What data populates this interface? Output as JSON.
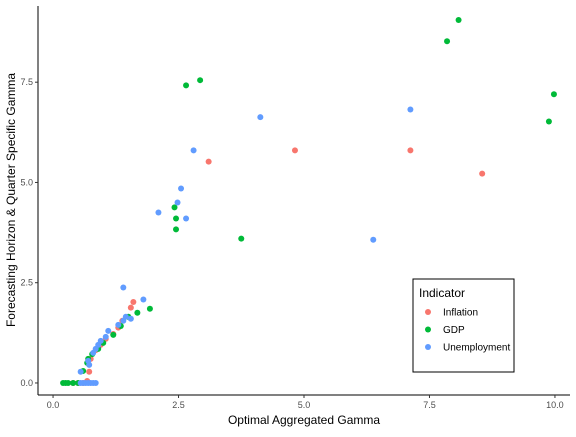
{
  "chart_data": {
    "type": "scatter",
    "xlabel": "Optimal Aggregated Gamma",
    "ylabel": "Forecasting Horizon & Quarter Specific Gamma",
    "xlim": [
      -0.3,
      10.3
    ],
    "ylim": [
      -0.3,
      9.4
    ],
    "x_ticks": [
      0,
      2.5,
      5,
      7.5,
      10
    ],
    "x_tick_labels": [
      "0.0",
      "2.5",
      "5.0",
      "7.5",
      "10.0"
    ],
    "y_ticks": [
      0,
      2.5,
      5,
      7.5
    ],
    "y_tick_labels": [
      "0.0",
      "2.5",
      "5.0",
      "7.5"
    ],
    "grid": false,
    "legend": {
      "title": "Indicator",
      "placement": "bottom-right",
      "entries": [
        "Inflation",
        "GDP",
        "Unemployment"
      ]
    },
    "series": [
      {
        "name": "Inflation",
        "color": "#F8766D",
        "points": [
          [
            3.1,
            5.52
          ],
          [
            4.82,
            5.8
          ],
          [
            7.12,
            5.8
          ],
          [
            8.55,
            5.22
          ],
          [
            1.6,
            2.02
          ],
          [
            1.55,
            1.88
          ],
          [
            1.38,
            1.55
          ],
          [
            1.3,
            1.38
          ],
          [
            1.2,
            1.22
          ],
          [
            1.05,
            1.1
          ],
          [
            0.95,
            0.95
          ],
          [
            0.85,
            0.82
          ],
          [
            0.75,
            0.6
          ],
          [
            0.72,
            0.28
          ],
          [
            0.68,
            0.05
          ],
          [
            0.6,
            0.0
          ],
          [
            0.5,
            0.0
          ],
          [
            0.4,
            0.0
          ]
        ]
      },
      {
        "name": "GDP",
        "color": "#00BA38",
        "points": [
          [
            8.08,
            9.05
          ],
          [
            7.85,
            8.52
          ],
          [
            9.98,
            7.2
          ],
          [
            9.88,
            6.52
          ],
          [
            2.93,
            7.55
          ],
          [
            2.65,
            7.42
          ],
          [
            2.42,
            4.38
          ],
          [
            2.45,
            4.1
          ],
          [
            2.45,
            3.83
          ],
          [
            3.75,
            3.6
          ],
          [
            1.93,
            1.85
          ],
          [
            1.68,
            1.75
          ],
          [
            1.5,
            1.65
          ],
          [
            1.35,
            1.42
          ],
          [
            1.2,
            1.2
          ],
          [
            1.0,
            1.0
          ],
          [
            0.9,
            0.85
          ],
          [
            0.78,
            0.72
          ],
          [
            0.7,
            0.6
          ],
          [
            0.68,
            0.5
          ],
          [
            0.6,
            0.3
          ],
          [
            0.5,
            0.0
          ],
          [
            0.4,
            0.0
          ],
          [
            0.3,
            0.0
          ],
          [
            0.25,
            0.0
          ],
          [
            0.2,
            0.0
          ]
        ]
      },
      {
        "name": "Unemployment",
        "color": "#619CFF",
        "points": [
          [
            7.12,
            6.82
          ],
          [
            4.13,
            6.63
          ],
          [
            2.8,
            5.8
          ],
          [
            2.55,
            4.85
          ],
          [
            2.48,
            4.5
          ],
          [
            2.1,
            4.25
          ],
          [
            2.65,
            4.1
          ],
          [
            6.38,
            3.57
          ],
          [
            1.4,
            2.38
          ],
          [
            1.8,
            2.08
          ],
          [
            1.45,
            1.65
          ],
          [
            1.55,
            1.6
          ],
          [
            1.4,
            1.55
          ],
          [
            1.3,
            1.45
          ],
          [
            1.1,
            1.3
          ],
          [
            1.05,
            1.15
          ],
          [
            0.95,
            1.05
          ],
          [
            0.9,
            0.95
          ],
          [
            0.85,
            0.85
          ],
          [
            0.8,
            0.75
          ],
          [
            0.7,
            0.55
          ],
          [
            0.72,
            0.45
          ],
          [
            0.55,
            0.28
          ],
          [
            0.85,
            0.0
          ],
          [
            0.8,
            0.0
          ],
          [
            0.75,
            0.0
          ],
          [
            0.7,
            0.0
          ],
          [
            0.65,
            0.0
          ],
          [
            0.6,
            0.0
          ],
          [
            0.55,
            0.0
          ]
        ]
      }
    ]
  }
}
